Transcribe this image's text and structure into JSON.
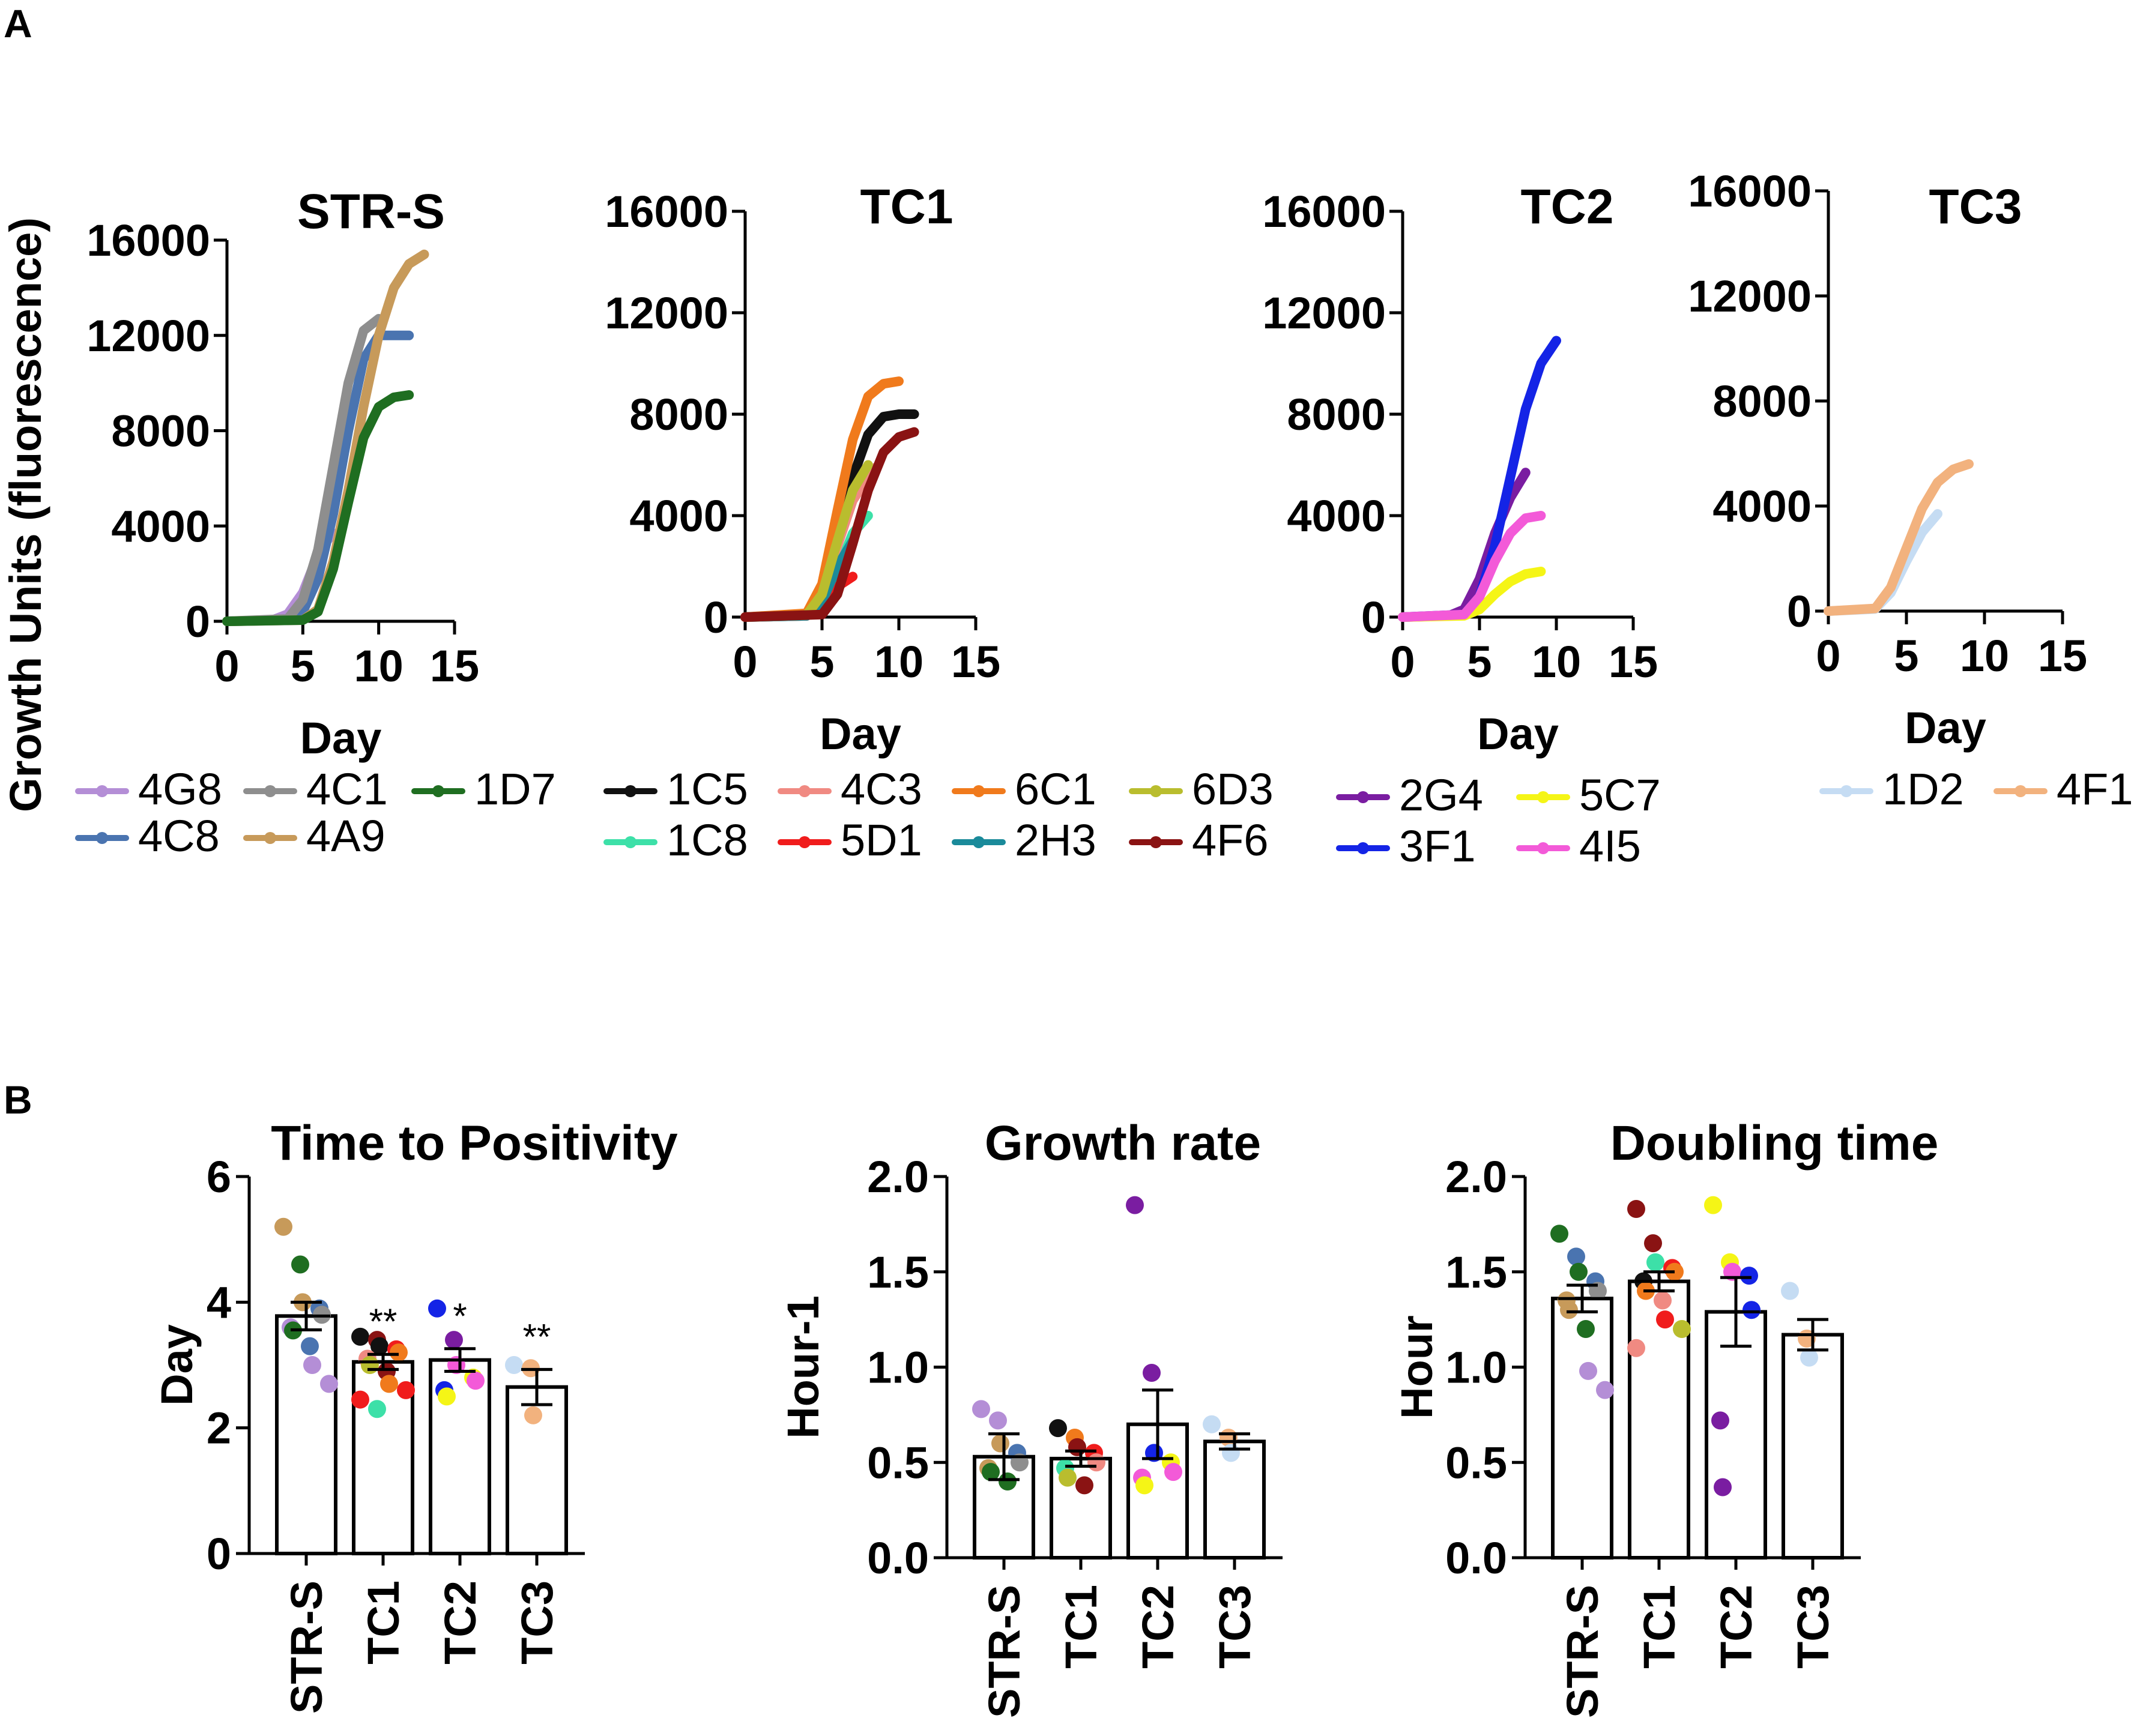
{
  "panel_labels": [
    "A",
    "B"
  ],
  "chart_data": [
    {
      "type": "line",
      "panel": "A",
      "title": "STR-S",
      "xlabel": "Day",
      "ylabel": "Growth Units (fluorescence)",
      "xlim": [
        0,
        15
      ],
      "ylim": [
        0,
        16000
      ],
      "xticks": [
        0,
        5,
        10,
        15
      ],
      "yticks": [
        0,
        4000,
        8000,
        12000,
        16000
      ],
      "xtick_labels": [
        "0",
        "5",
        "10",
        "15"
      ],
      "ytick_labels": [
        "0",
        "4000",
        "8000",
        "12000",
        "16000"
      ],
      "series": [
        {
          "name": "4G8",
          "color": "#b48ed6",
          "x": [
            0,
            3,
            4,
            5,
            5.5,
            6,
            6.5,
            7
          ],
          "y": [
            0,
            50,
            300,
            1200,
            2000,
            2800,
            3300,
            3700
          ]
        },
        {
          "name": "4C8",
          "color": "#4a74b0",
          "x": [
            0,
            4,
            5,
            6,
            7,
            8,
            9,
            10,
            11,
            12
          ],
          "y": [
            0,
            50,
            400,
            1800,
            4500,
            8000,
            11000,
            12000,
            12000,
            12000
          ]
        },
        {
          "name": "4C1",
          "color": "#8e8e8e",
          "x": [
            0,
            4,
            5,
            6,
            7,
            8,
            9,
            10
          ],
          "y": [
            0,
            100,
            900,
            3000,
            6500,
            10000,
            12200,
            12700
          ]
        },
        {
          "name": "4A9",
          "color": "#c79a5a",
          "x": [
            0,
            5,
            6,
            7,
            8,
            9,
            10,
            11,
            12,
            13
          ],
          "y": [
            0,
            50,
            500,
            2500,
            5500,
            9000,
            12000,
            14000,
            15000,
            15400
          ]
        },
        {
          "name": "1D7",
          "color": "#1f6e21",
          "x": [
            0,
            5,
            6,
            7,
            8,
            9,
            10,
            11,
            12
          ],
          "y": [
            0,
            50,
            400,
            2200,
            5000,
            7700,
            9000,
            9400,
            9500
          ]
        }
      ]
    },
    {
      "type": "line",
      "panel": "A",
      "title": "TC1",
      "xlabel": "Day",
      "xlim": [
        0,
        15
      ],
      "ylim": [
        0,
        16000
      ],
      "xticks": [
        0,
        5,
        10,
        15
      ],
      "yticks": [
        0,
        4000,
        8000,
        12000,
        16000
      ],
      "xtick_labels": [
        "0",
        "5",
        "10",
        "15"
      ],
      "ytick_labels": [
        "0",
        "4000",
        "8000",
        "12000",
        "16000"
      ],
      "series": [
        {
          "name": "1C5",
          "color": "#111111",
          "x": [
            0,
            4,
            5,
            6,
            7,
            8,
            9,
            10,
            11
          ],
          "y": [
            0,
            100,
            800,
            3000,
            5500,
            7200,
            7900,
            8000,
            8000
          ]
        },
        {
          "name": "1C8",
          "color": "#3de0a8",
          "x": [
            0,
            4,
            5,
            6,
            7,
            8
          ],
          "y": [
            0,
            50,
            500,
            1800,
            3300,
            4000
          ]
        },
        {
          "name": "4C3",
          "color": "#f08a82",
          "x": [
            0,
            4,
            5,
            6,
            7,
            8,
            8.5
          ],
          "y": [
            0,
            100,
            900,
            2800,
            4600,
            5500,
            5900
          ]
        },
        {
          "name": "5D1",
          "color": "#f01c1c",
          "x": [
            0,
            4,
            5,
            6,
            7
          ],
          "y": [
            0,
            50,
            400,
            1200,
            1600
          ]
        },
        {
          "name": "6C1",
          "color": "#f07a1c",
          "x": [
            0,
            4,
            5,
            6,
            7,
            8,
            9,
            10
          ],
          "y": [
            0,
            150,
            1300,
            4200,
            7000,
            8700,
            9200,
            9300
          ]
        },
        {
          "name": "2H3",
          "color": "#1a8a9a",
          "x": [
            0,
            4,
            5,
            6,
            7
          ],
          "y": [
            0,
            50,
            600,
            2000,
            3000
          ]
        },
        {
          "name": "6D3",
          "color": "#b9bd2e",
          "x": [
            0,
            4,
            5,
            6,
            7,
            8
          ],
          "y": [
            0,
            80,
            900,
            3000,
            5000,
            6000
          ]
        },
        {
          "name": "4F6",
          "color": "#8a1313",
          "x": [
            0,
            5,
            6,
            7,
            8,
            9,
            10,
            11
          ],
          "y": [
            0,
            100,
            900,
            2900,
            5000,
            6500,
            7100,
            7300
          ]
        }
      ]
    },
    {
      "type": "line",
      "panel": "A",
      "title": "TC2",
      "xlabel": "Day",
      "xlim": [
        0,
        15
      ],
      "ylim": [
        0,
        16000
      ],
      "xticks": [
        0,
        5,
        10,
        15
      ],
      "yticks": [
        0,
        4000,
        8000,
        12000,
        16000
      ],
      "xtick_labels": [
        "0",
        "5",
        "10",
        "15"
      ],
      "ytick_labels": [
        "0",
        "4000",
        "8000",
        "12000",
        "16000"
      ],
      "series": [
        {
          "name": "2G4",
          "color": "#7a1da1",
          "x": [
            0,
            3,
            4,
            5,
            6,
            7,
            8
          ],
          "y": [
            0,
            50,
            300,
            1500,
            3300,
            4700,
            5700
          ]
        },
        {
          "name": "3F1",
          "color": "#1424e6",
          "x": [
            0,
            4,
            5,
            6,
            7,
            8,
            9,
            10
          ],
          "y": [
            0,
            100,
            800,
            2800,
            5500,
            8200,
            10000,
            10900
          ]
        },
        {
          "name": "5C7",
          "color": "#f5f516",
          "x": [
            0,
            4,
            5,
            6,
            7,
            8,
            9
          ],
          "y": [
            0,
            50,
            300,
            900,
            1400,
            1700,
            1800
          ]
        },
        {
          "name": "4I5",
          "color": "#f35ad8",
          "x": [
            0,
            4,
            5,
            6,
            7,
            8,
            9
          ],
          "y": [
            0,
            100,
            800,
            2200,
            3300,
            3900,
            4000
          ]
        }
      ]
    },
    {
      "type": "line",
      "panel": "A",
      "title": "TC3",
      "xlabel": "Day",
      "xlim": [
        0,
        15
      ],
      "ylim": [
        0,
        16000
      ],
      "xticks": [
        0,
        5,
        10,
        15
      ],
      "yticks": [
        0,
        4000,
        8000,
        12000,
        16000
      ],
      "xtick_labels": [
        "0",
        "5",
        "10",
        "15"
      ],
      "ytick_labels": [
        "0",
        "4000",
        "8000",
        "12000",
        "16000"
      ],
      "series": [
        {
          "name": "1D2",
          "color": "#c5dcf3",
          "x": [
            0,
            3,
            4,
            5,
            6,
            7
          ],
          "y": [
            0,
            80,
            700,
            1900,
            3000,
            3700
          ]
        },
        {
          "name": "4F1",
          "color": "#f2b27e",
          "x": [
            0,
            3,
            4,
            5,
            6,
            7,
            8,
            9
          ],
          "y": [
            0,
            100,
            900,
            2400,
            3900,
            4900,
            5400,
            5600
          ]
        }
      ]
    },
    {
      "type": "bar",
      "panel": "B",
      "title": "Time to Positivity",
      "ylabel": "Day",
      "ylim": [
        0,
        6
      ],
      "yticks": [
        0,
        2,
        4,
        6
      ],
      "ytick_labels": [
        "0",
        "2",
        "4",
        "6"
      ],
      "categories": [
        "STR-S",
        "TC1",
        "TC2",
        "TC3"
      ],
      "means": [
        3.78,
        3.05,
        3.08,
        2.65
      ],
      "sem": [
        0.22,
        0.12,
        0.18,
        0.28
      ],
      "significance": [
        "",
        "**",
        "*",
        "**"
      ],
      "points": [
        [
          [
            5.2,
            "#c79a5a"
          ],
          [
            4.6,
            "#1f6e21"
          ],
          [
            4.0,
            "#c79a5a"
          ],
          [
            3.9,
            "#4a74b0"
          ],
          [
            3.8,
            "#8e8e8e"
          ],
          [
            3.6,
            "#b48ed6"
          ],
          [
            3.55,
            "#1f6e21"
          ],
          [
            3.3,
            "#4a74b0"
          ],
          [
            3.0,
            "#b48ed6"
          ],
          [
            2.7,
            "#b48ed6"
          ]
        ],
        [
          [
            3.45,
            "#111111"
          ],
          [
            3.4,
            "#8a1313"
          ],
          [
            3.3,
            "#111111"
          ],
          [
            3.25,
            "#f01c1c"
          ],
          [
            3.2,
            "#f07a1c"
          ],
          [
            3.1,
            "#f08a82"
          ],
          [
            3.0,
            "#b9bd2e"
          ],
          [
            2.9,
            "#8a1313"
          ],
          [
            2.7,
            "#f07a1c"
          ],
          [
            2.6,
            "#f01c1c"
          ],
          [
            2.45,
            "#f01c1c"
          ],
          [
            2.3,
            "#3de0a8"
          ]
        ],
        [
          [
            3.9,
            "#1424e6"
          ],
          [
            3.4,
            "#7a1da1"
          ],
          [
            3.0,
            "#f35ad8"
          ],
          [
            2.8,
            "#f5f516"
          ],
          [
            2.75,
            "#f35ad8"
          ],
          [
            2.6,
            "#1424e6"
          ],
          [
            2.5,
            "#f5f516"
          ]
        ],
        [
          [
            3.0,
            "#c5dcf3"
          ],
          [
            2.95,
            "#f2b27e"
          ],
          [
            2.2,
            "#f2b27e"
          ]
        ]
      ]
    },
    {
      "type": "bar",
      "panel": "B",
      "title": "Growth rate",
      "ylabel": "Hour-1",
      "ylim": [
        0,
        2.0
      ],
      "yticks": [
        0,
        0.5,
        1.0,
        1.5,
        2.0
      ],
      "ytick_labels": [
        "0.0",
        "0.5",
        "1.0",
        "1.5",
        "2.0"
      ],
      "categories": [
        "STR-S",
        "TC1",
        "TC2",
        "TC3"
      ],
      "means": [
        0.53,
        0.52,
        0.7,
        0.61
      ],
      "sem": [
        0.12,
        0.04,
        0.18,
        0.04
      ],
      "significance": [
        "",
        "",
        "",
        ""
      ],
      "points": [
        [
          [
            0.78,
            "#b48ed6"
          ],
          [
            0.72,
            "#b48ed6"
          ],
          [
            0.6,
            "#c79a5a"
          ],
          [
            0.55,
            "#4a74b0"
          ],
          [
            0.5,
            "#8e8e8e"
          ],
          [
            0.47,
            "#c79a5a"
          ],
          [
            0.45,
            "#1f6e21"
          ],
          [
            0.4,
            "#1f6e21"
          ]
        ],
        [
          [
            0.68,
            "#111111"
          ],
          [
            0.63,
            "#f07a1c"
          ],
          [
            0.58,
            "#8a1313"
          ],
          [
            0.55,
            "#f01c1c"
          ],
          [
            0.5,
            "#f08a82"
          ],
          [
            0.47,
            "#3de0a8"
          ],
          [
            0.42,
            "#b9bd2e"
          ],
          [
            0.38,
            "#8a1313"
          ]
        ],
        [
          [
            1.85,
            "#7a1da1"
          ],
          [
            0.97,
            "#7a1da1"
          ],
          [
            0.55,
            "#1424e6"
          ],
          [
            0.5,
            "#f5f516"
          ],
          [
            0.45,
            "#f35ad8"
          ],
          [
            0.42,
            "#f35ad8"
          ],
          [
            0.38,
            "#f5f516"
          ]
        ],
        [
          [
            0.7,
            "#c5dcf3"
          ],
          [
            0.63,
            "#f2b27e"
          ],
          [
            0.55,
            "#c5dcf3"
          ]
        ]
      ]
    },
    {
      "type": "bar",
      "panel": "B",
      "title": "Doubling time",
      "ylabel": "Hour",
      "ylim": [
        0,
        2.0
      ],
      "yticks": [
        0,
        0.5,
        1.0,
        1.5,
        2.0
      ],
      "ytick_labels": [
        "0.0",
        "0.5",
        "1.0",
        "1.5",
        "2.0"
      ],
      "categories": [
        "STR-S",
        "TC1",
        "TC2",
        "TC3"
      ],
      "means": [
        1.36,
        1.45,
        1.29,
        1.17
      ],
      "sem": [
        0.07,
        0.05,
        0.18,
        0.08
      ],
      "significance": [
        "",
        "",
        "",
        ""
      ],
      "points": [
        [
          [
            1.7,
            "#1f6e21"
          ],
          [
            1.58,
            "#4a74b0"
          ],
          [
            1.5,
            "#1f6e21"
          ],
          [
            1.45,
            "#4a74b0"
          ],
          [
            1.4,
            "#8e8e8e"
          ],
          [
            1.35,
            "#c79a5a"
          ],
          [
            1.3,
            "#c79a5a"
          ],
          [
            1.2,
            "#1f6e21"
          ],
          [
            0.98,
            "#b48ed6"
          ],
          [
            0.88,
            "#b48ed6"
          ]
        ],
        [
          [
            1.83,
            "#8a1313"
          ],
          [
            1.65,
            "#8a1313"
          ],
          [
            1.55,
            "#3de0a8"
          ],
          [
            1.52,
            "#f01c1c"
          ],
          [
            1.5,
            "#f07a1c"
          ],
          [
            1.45,
            "#111111"
          ],
          [
            1.4,
            "#f07a1c"
          ],
          [
            1.35,
            "#f08a82"
          ],
          [
            1.25,
            "#f01c1c"
          ],
          [
            1.2,
            "#b9bd2e"
          ],
          [
            1.1,
            "#f08a82"
          ]
        ],
        [
          [
            1.85,
            "#f5f516"
          ],
          [
            1.55,
            "#f5f516"
          ],
          [
            1.5,
            "#f35ad8"
          ],
          [
            1.48,
            "#1424e6"
          ],
          [
            1.3,
            "#1424e6"
          ],
          [
            0.72,
            "#7a1da1"
          ],
          [
            0.37,
            "#7a1da1"
          ]
        ],
        [
          [
            1.4,
            "#c5dcf3"
          ],
          [
            1.15,
            "#f2b27e"
          ],
          [
            1.05,
            "#c5dcf3"
          ]
        ]
      ]
    }
  ]
}
